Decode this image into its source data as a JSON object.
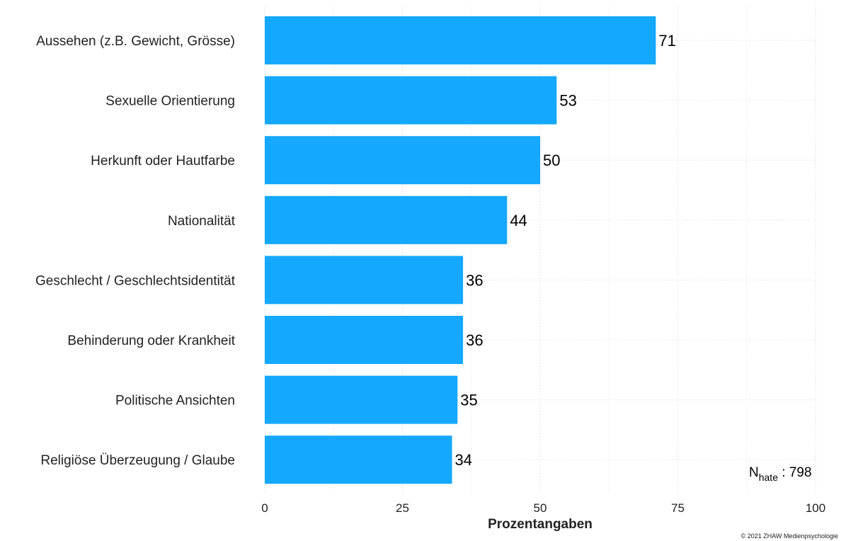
{
  "chart_data": {
    "type": "bar",
    "orientation": "horizontal",
    "categories": [
      "Aussehen (z.B. Gewicht, Grösse)",
      "Sexuelle Orientierung",
      "Herkunft oder Hautfarbe",
      "Nationalität",
      "Geschlecht / Geschlechtsidentität",
      "Behinderung oder Krankheit",
      "Politische Ansichten",
      "Religiöse Überzeugung / Glaube"
    ],
    "values": [
      71,
      53,
      50,
      44,
      36,
      36,
      35,
      34
    ],
    "value_labels": [
      "71",
      "53",
      "50",
      "44",
      "36",
      "36",
      "35",
      "34"
    ],
    "xlabel": "Prozentangaben",
    "xlim": [
      0,
      100
    ],
    "xticks": [
      0,
      25,
      50,
      75,
      100
    ],
    "xtick_labels": [
      "0",
      "25",
      "50",
      "75",
      "100"
    ],
    "grid": true,
    "bar_color": "#14a8fe"
  },
  "annotation": {
    "n_prefix": "N",
    "n_subscript": "hate",
    "n_value": " : 798"
  },
  "copyright": "© 2021 ZHAW Medienpsychologie"
}
